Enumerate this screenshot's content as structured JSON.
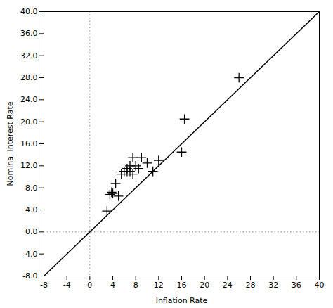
{
  "chart_data": {
    "type": "scatter",
    "xlabel": "Inflation Rate",
    "ylabel": "Nominal Interest Rate",
    "xlim": [
      -8,
      40
    ],
    "ylim": [
      -8,
      40
    ],
    "xticks": [
      -8,
      -4,
      0,
      4,
      8,
      12,
      16,
      20,
      24,
      28,
      32,
      36,
      40
    ],
    "yticks": [
      {
        "value": -8,
        "label": "-8.0"
      },
      {
        "value": -4,
        "label": "-4.0"
      },
      {
        "value": 0,
        "label": "0.0"
      },
      {
        "value": 4,
        "label": "4.0"
      },
      {
        "value": 8,
        "label": "8.0"
      },
      {
        "value": 12,
        "label": "12.0"
      },
      {
        "value": 16,
        "label": "16.0"
      },
      {
        "value": 20,
        "label": "20.0"
      },
      {
        "value": 24,
        "label": "24.0"
      },
      {
        "value": 28,
        "label": "28.0"
      },
      {
        "value": 32,
        "label": "32.0"
      },
      {
        "value": 36,
        "label": "36.0"
      },
      {
        "value": 40,
        "label": "40.0"
      }
    ],
    "grid": false,
    "series": [
      {
        "type": "scatter",
        "color": "black",
        "marker": "plus",
        "x": [
          3.0,
          3.5,
          3.8,
          4.5,
          5.0,
          5.5,
          6.0,
          6.5,
          7.0,
          7.0,
          7.5,
          8.0,
          9.0,
          10.0,
          11.0,
          12.0,
          16.0,
          16.5,
          26.0,
          4.0,
          6.5,
          7.5,
          8.5
        ],
        "values": [
          3.8,
          6.8,
          7.2,
          8.8,
          6.5,
          10.5,
          11.0,
          11.5,
          12.0,
          11.0,
          10.5,
          12.0,
          13.5,
          12.5,
          11.0,
          13.0,
          14.5,
          20.5,
          28.0,
          7.0,
          11.0,
          13.5,
          11.5
        ]
      },
      {
        "type": "line",
        "color": "black",
        "line_style": "solid",
        "x": [
          -8,
          40
        ],
        "values": [
          -8,
          40
        ]
      }
    ],
    "reference_lines": [
      {
        "axis": "y",
        "value": 0,
        "color": "#888888",
        "line_style": "dotted"
      },
      {
        "axis": "x",
        "value": 0,
        "color": "#888888",
        "line_style": "dotted"
      }
    ]
  }
}
